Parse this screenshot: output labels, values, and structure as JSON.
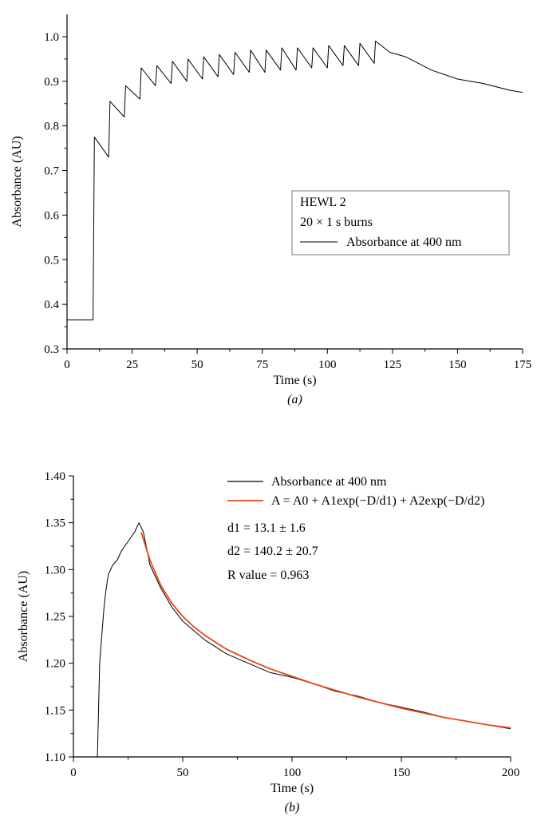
{
  "chart_data": [
    {
      "type": "line",
      "panel_label": "a",
      "xlabel": "Time (s)",
      "ylabel": "Absorbance (AU)",
      "xlim": [
        0,
        175
      ],
      "ylim": [
        0.3,
        1.05
      ],
      "xticks": [
        0,
        25,
        50,
        75,
        100,
        125,
        150,
        175
      ],
      "yticks": [
        0.3,
        0.4,
        0.5,
        0.6,
        0.7,
        0.8,
        0.9,
        1.0
      ],
      "ytick_labels": [
        "0.3",
        "0.4",
        "0.5",
        "0.6",
        "0.7",
        "0.8",
        "0.9",
        "1.0"
      ],
      "grid": false,
      "legend": {
        "placement": "center-right",
        "title_lines": [
          "HEWL 2",
          "20 × 1 s burns"
        ],
        "entries": [
          "Absorbance at 400 nm"
        ]
      },
      "series": [
        {
          "name": "Absorbance at 400 nm",
          "color": "#000000",
          "x": [
            0,
            10,
            10.5,
            16,
            16.5,
            22,
            22.5,
            28,
            28.5,
            34,
            34.5,
            40,
            40.5,
            46,
            46.5,
            52,
            52.5,
            58,
            58.5,
            64,
            64.5,
            70,
            70.5,
            76,
            76.5,
            82,
            82.5,
            88,
            88.5,
            94,
            94.5,
            100,
            100.5,
            106,
            106.5,
            112,
            112.5,
            118,
            118.5,
            124,
            130,
            140,
            150,
            160,
            170,
            175
          ],
          "y": [
            0.365,
            0.365,
            0.775,
            0.73,
            0.855,
            0.82,
            0.89,
            0.86,
            0.93,
            0.89,
            0.935,
            0.895,
            0.945,
            0.9,
            0.95,
            0.905,
            0.955,
            0.91,
            0.96,
            0.915,
            0.965,
            0.92,
            0.97,
            0.92,
            0.97,
            0.925,
            0.975,
            0.925,
            0.975,
            0.93,
            0.975,
            0.93,
            0.98,
            0.935,
            0.98,
            0.935,
            0.985,
            0.94,
            0.99,
            0.965,
            0.955,
            0.925,
            0.905,
            0.895,
            0.88,
            0.875
          ]
        }
      ]
    },
    {
      "type": "line",
      "panel_label": "b",
      "xlabel": "Time (s)",
      "ylabel": "Absorbance (AU)",
      "xlim": [
        0,
        200
      ],
      "ylim": [
        1.1,
        1.4
      ],
      "xticks": [
        0,
        50,
        100,
        150,
        200
      ],
      "yticks": [
        1.1,
        1.15,
        1.2,
        1.25,
        1.3,
        1.35,
        1.4
      ],
      "ytick_labels": [
        "1.10",
        "1.15",
        "1.20",
        "1.25",
        "1.30",
        "1.35",
        "1.40"
      ],
      "grid": false,
      "legend": {
        "placement": "top-right",
        "entries": [
          "Absorbance at 400 nm",
          "A = A0 + A1exp(−D/d1) + A2exp(−D/d2)"
        ],
        "annotations": [
          "d1 = 13.1 ± 1.6",
          "d2 = 140.2 ± 20.7",
          "R value = 0.963"
        ]
      },
      "series": [
        {
          "name": "Absorbance at 400 nm",
          "color": "#000000",
          "x": [
            11,
            12,
            13,
            14,
            15,
            16,
            18,
            20,
            22,
            25,
            28,
            30,
            32,
            35,
            40,
            45,
            50,
            55,
            60,
            70,
            80,
            90,
            100,
            110,
            120,
            130,
            140,
            150,
            160,
            170,
            180,
            190,
            200
          ],
          "y": [
            1.1,
            1.2,
            1.23,
            1.26,
            1.28,
            1.295,
            1.305,
            1.31,
            1.32,
            1.33,
            1.34,
            1.35,
            1.34,
            1.305,
            1.28,
            1.26,
            1.245,
            1.235,
            1.225,
            1.21,
            1.2,
            1.19,
            1.185,
            1.178,
            1.17,
            1.165,
            1.158,
            1.153,
            1.148,
            1.142,
            1.138,
            1.134,
            1.13
          ]
        },
        {
          "name": "A = A0 + A1exp(−D/d1) + A2exp(−D/d2)",
          "color": "#e8451f",
          "x": [
            31,
            35,
            40,
            45,
            50,
            55,
            60,
            70,
            80,
            90,
            100,
            110,
            120,
            130,
            140,
            150,
            160,
            170,
            180,
            190,
            200
          ],
          "y": [
            1.34,
            1.31,
            1.283,
            1.264,
            1.25,
            1.239,
            1.23,
            1.215,
            1.204,
            1.194,
            1.186,
            1.178,
            1.171,
            1.164,
            1.158,
            1.152,
            1.147,
            1.142,
            1.138,
            1.134,
            1.131
          ]
        }
      ]
    }
  ]
}
